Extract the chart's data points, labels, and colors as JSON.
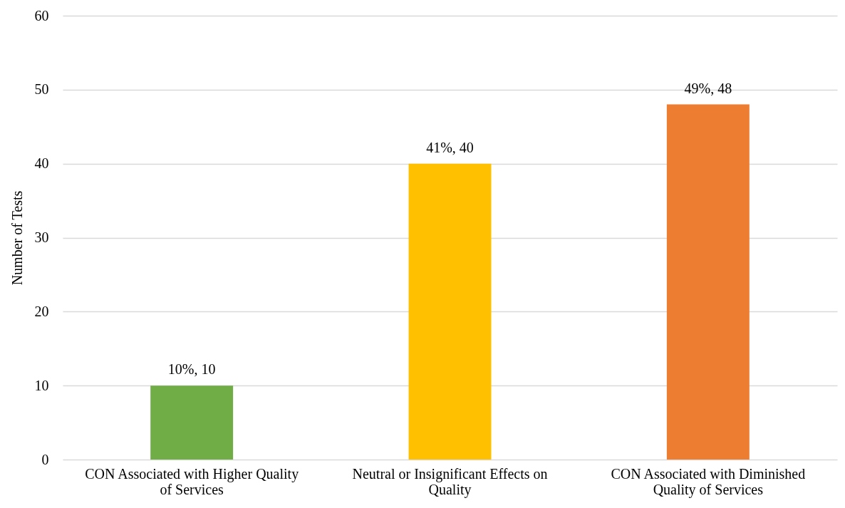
{
  "chart_data": {
    "type": "bar",
    "ylabel": "Number of Tests",
    "categories": [
      "CON Associated with Higher Quality of Services",
      "Neutral or Insignificant Effects on Quality",
      "CON Associated with Diminished Quality of Services"
    ],
    "values": [
      10,
      40,
      48
    ],
    "colors": [
      "#70ad47",
      "#ffc000",
      "#ed7d31"
    ],
    "value_labels": [
      "10%, 10",
      "41%, 40",
      "49%, 48"
    ],
    "ylim": [
      0,
      60
    ],
    "yticks": [
      0,
      10,
      20,
      30,
      40,
      50,
      60
    ],
    "grid": "y"
  }
}
